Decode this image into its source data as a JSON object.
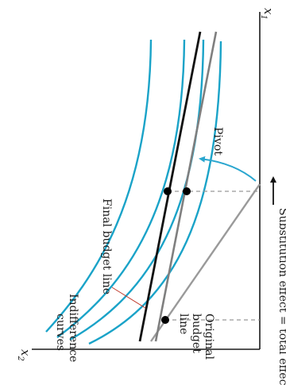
{
  "labels": {
    "x1": "x",
    "x1_sub": "1",
    "x2": "x",
    "x2_sub": "2",
    "indifference_1": "Indifference",
    "indifference_2": "curves",
    "final_budget": "Final budget line",
    "pivot": "Pivot",
    "original_1": "Original",
    "original_2": "budget",
    "original_3": "line",
    "effect": "Substitution effect = total effect"
  },
  "colors": {
    "indifference_curve": "#1aa3c8",
    "final_budget_line": "#111111",
    "original_budget_lines": "#8c8c8c",
    "axis": "#1a1a1a",
    "dashed_lines": "#999999",
    "pivot_arrow": "#2aa6cf",
    "points": "#000000"
  }
}
